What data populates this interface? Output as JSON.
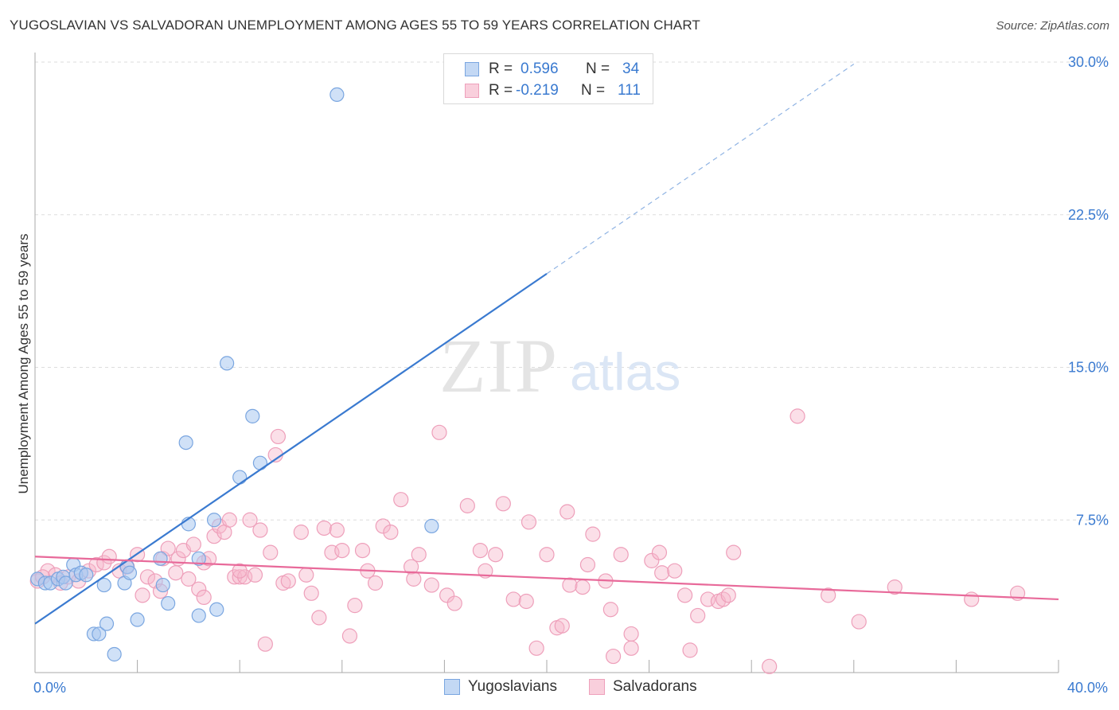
{
  "header": {
    "title": "YUGOSLAVIAN VS SALVADORAN UNEMPLOYMENT AMONG AGES 55 TO 59 YEARS CORRELATION CHART",
    "source": "Source: ZipAtlas.com"
  },
  "legend": {
    "rows": [
      {
        "r_label": "R =",
        "r_value": "0.596",
        "n_label": "N =",
        "n_value": "34"
      },
      {
        "r_label": "R =",
        "r_value": "-0.219",
        "n_label": "N =",
        "n_value": "111"
      }
    ],
    "bottom": [
      "Yugoslavians",
      "Salvadorans"
    ]
  },
  "watermark": {
    "zip": "ZIP",
    "atlas": "atlas"
  },
  "colors": {
    "blue": "#3a7ad0",
    "blue_fill": "#a9c8f0",
    "pink": "#e86a9a",
    "pink_fill": "#f6b9cd",
    "grid": "#dddddd",
    "tick_text": "#3a7ad0"
  },
  "chart_data": {
    "type": "scatter",
    "title": "YUGOSLAVIAN VS SALVADORAN UNEMPLOYMENT AMONG AGES 55 TO 59 YEARS CORRELATION CHART",
    "xlabel": "",
    "ylabel": "Unemployment Among Ages 55 to 59 years",
    "xlim": [
      0,
      40
    ],
    "ylim": [
      0,
      30
    ],
    "x_tick_labels": [
      {
        "value": 0,
        "label": "0.0%"
      },
      {
        "value": 40,
        "label": "40.0%"
      }
    ],
    "y_tick_labels": [
      {
        "value": 7.5,
        "label": "7.5%"
      },
      {
        "value": 15,
        "label": "15.0%"
      },
      {
        "value": 22.5,
        "label": "22.5%"
      },
      {
        "value": 30,
        "label": "30.0%"
      }
    ],
    "series": [
      {
        "name": "Yugoslavians",
        "r": 0.596,
        "n": 34,
        "trend": {
          "x0": 0,
          "y0": 2.4,
          "x1": 20,
          "y1": 19.6,
          "dash_to_x": 32,
          "dash_to_y": 29.9
        },
        "points": [
          [
            0.1,
            4.6
          ],
          [
            0.4,
            4.4
          ],
          [
            0.6,
            4.4
          ],
          [
            0.9,
            4.6
          ],
          [
            1.1,
            4.7
          ],
          [
            1.2,
            4.4
          ],
          [
            1.5,
            5.3
          ],
          [
            1.6,
            4.8
          ],
          [
            1.8,
            4.9
          ],
          [
            2.0,
            4.8
          ],
          [
            2.3,
            1.9
          ],
          [
            2.5,
            1.9
          ],
          [
            2.7,
            4.3
          ],
          [
            2.8,
            2.4
          ],
          [
            3.1,
            0.9
          ],
          [
            3.5,
            4.4
          ],
          [
            3.6,
            5.2
          ],
          [
            3.7,
            4.9
          ],
          [
            4.0,
            2.6
          ],
          [
            4.9,
            5.6
          ],
          [
            5.0,
            4.3
          ],
          [
            5.2,
            3.4
          ],
          [
            6.0,
            7.3
          ],
          [
            5.9,
            11.3
          ],
          [
            6.4,
            5.6
          ],
          [
            6.4,
            2.8
          ],
          [
            7.0,
            7.5
          ],
          [
            7.1,
            3.1
          ],
          [
            7.5,
            15.2
          ],
          [
            8.0,
            9.6
          ],
          [
            8.5,
            12.6
          ],
          [
            8.8,
            10.3
          ],
          [
            11.8,
            28.4
          ],
          [
            15.5,
            7.2
          ]
        ]
      },
      {
        "name": "Salvadorans",
        "r": -0.219,
        "n": 111,
        "trend": {
          "x0": 0,
          "y0": 5.7,
          "x1": 40,
          "y1": 3.6
        },
        "points": [
          [
            0.1,
            4.5
          ],
          [
            0.5,
            5.0
          ],
          [
            0.8,
            4.8
          ],
          [
            1.0,
            4.4
          ],
          [
            1.3,
            4.7
          ],
          [
            1.7,
            4.5
          ],
          [
            2.1,
            5.0
          ],
          [
            2.4,
            5.3
          ],
          [
            2.7,
            5.4
          ],
          [
            2.9,
            5.7
          ],
          [
            3.3,
            5.0
          ],
          [
            3.6,
            5.2
          ],
          [
            4.0,
            5.8
          ],
          [
            4.2,
            3.8
          ],
          [
            4.4,
            4.7
          ],
          [
            4.7,
            4.5
          ],
          [
            4.9,
            4.0
          ],
          [
            5.0,
            5.6
          ],
          [
            5.2,
            6.1
          ],
          [
            5.5,
            4.9
          ],
          [
            5.6,
            5.6
          ],
          [
            5.8,
            6.0
          ],
          [
            6.0,
            4.6
          ],
          [
            6.2,
            6.3
          ],
          [
            6.4,
            4.1
          ],
          [
            6.6,
            5.4
          ],
          [
            6.8,
            5.6
          ],
          [
            7.0,
            6.7
          ],
          [
            7.2,
            7.2
          ],
          [
            7.4,
            6.9
          ],
          [
            7.6,
            7.5
          ],
          [
            7.8,
            4.7
          ],
          [
            8.0,
            4.7
          ],
          [
            8.2,
            4.7
          ],
          [
            8.4,
            7.5
          ],
          [
            8.6,
            4.8
          ],
          [
            8.8,
            7.0
          ],
          [
            9.0,
            1.4
          ],
          [
            9.2,
            5.9
          ],
          [
            9.4,
            10.7
          ],
          [
            9.5,
            11.6
          ],
          [
            9.7,
            4.4
          ],
          [
            9.9,
            4.5
          ],
          [
            10.4,
            6.9
          ],
          [
            10.6,
            4.8
          ],
          [
            10.8,
            3.9
          ],
          [
            11.1,
            2.7
          ],
          [
            11.3,
            7.1
          ],
          [
            11.6,
            5.9
          ],
          [
            11.8,
            7.0
          ],
          [
            12.0,
            6.0
          ],
          [
            12.3,
            1.8
          ],
          [
            12.5,
            3.3
          ],
          [
            12.8,
            6.0
          ],
          [
            13.0,
            5.0
          ],
          [
            13.3,
            4.4
          ],
          [
            13.6,
            7.2
          ],
          [
            13.9,
            6.9
          ],
          [
            14.3,
            8.5
          ],
          [
            14.7,
            5.2
          ],
          [
            14.8,
            4.6
          ],
          [
            15.0,
            5.8
          ],
          [
            15.5,
            4.3
          ],
          [
            15.8,
            11.8
          ],
          [
            16.1,
            3.8
          ],
          [
            16.4,
            3.4
          ],
          [
            16.9,
            8.2
          ],
          [
            17.4,
            6.0
          ],
          [
            17.6,
            5.0
          ],
          [
            18.0,
            5.8
          ],
          [
            18.3,
            8.3
          ],
          [
            18.7,
            3.6
          ],
          [
            19.2,
            3.5
          ],
          [
            19.3,
            7.4
          ],
          [
            19.6,
            1.2
          ],
          [
            20.0,
            5.8
          ],
          [
            20.4,
            2.2
          ],
          [
            20.6,
            2.3
          ],
          [
            20.9,
            4.3
          ],
          [
            20.8,
            7.9
          ],
          [
            21.4,
            4.2
          ],
          [
            21.6,
            5.3
          ],
          [
            21.8,
            6.8
          ],
          [
            22.3,
            4.5
          ],
          [
            22.5,
            3.1
          ],
          [
            22.6,
            0.8
          ],
          [
            22.9,
            5.8
          ],
          [
            23.3,
            1.9
          ],
          [
            23.3,
            1.2
          ],
          [
            24.1,
            5.5
          ],
          [
            24.4,
            5.9
          ],
          [
            24.5,
            4.9
          ],
          [
            25.0,
            5.0
          ],
          [
            25.6,
            1.1
          ],
          [
            25.4,
            3.8
          ],
          [
            27.3,
            5.9
          ],
          [
            25.9,
            2.8
          ],
          [
            26.3,
            3.6
          ],
          [
            26.7,
            3.5
          ],
          [
            26.9,
            3.6
          ],
          [
            27.1,
            3.8
          ],
          [
            28.7,
            0.3
          ],
          [
            29.8,
            12.6
          ],
          [
            31.0,
            3.8
          ],
          [
            32.2,
            2.5
          ],
          [
            33.6,
            4.2
          ],
          [
            36.6,
            3.6
          ],
          [
            38.4,
            3.9
          ],
          [
            0.3,
            4.7
          ],
          [
            6.6,
            3.7
          ],
          [
            8.0,
            5.0
          ]
        ]
      }
    ]
  }
}
